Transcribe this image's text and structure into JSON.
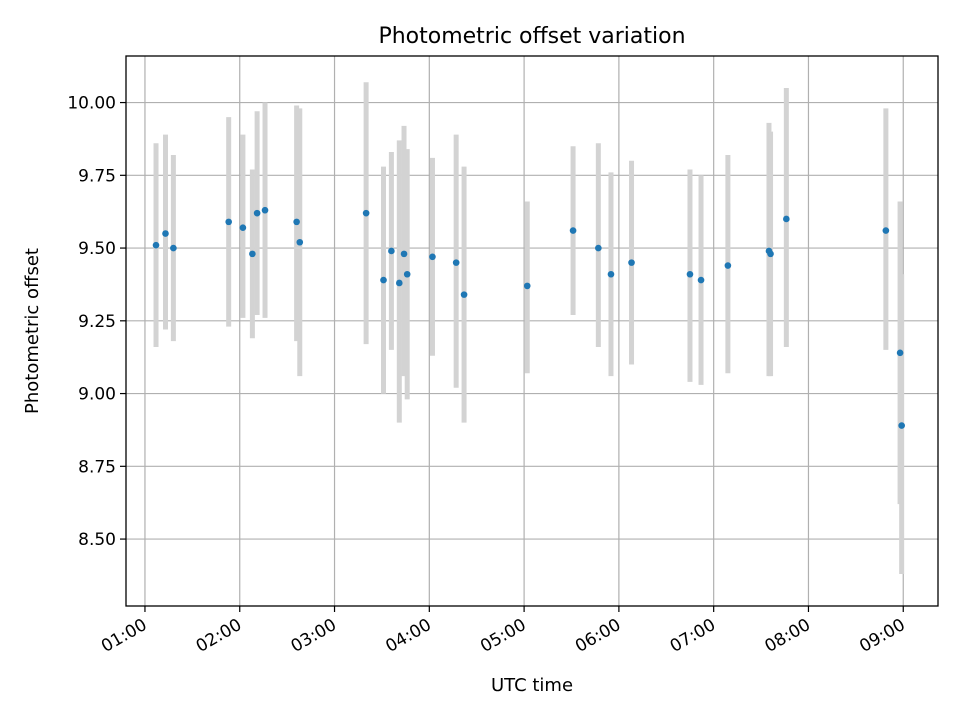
{
  "chart_data": {
    "type": "scatter",
    "title": "Photometric offset variation",
    "xlabel": "UTC time",
    "ylabel": "Photometric offset",
    "xlim": [
      "00:48",
      "09:22"
    ],
    "ylim": [
      8.27,
      10.16
    ],
    "x_ticks": [
      "01:00",
      "02:00",
      "03:00",
      "04:00",
      "05:00",
      "06:00",
      "07:00",
      "08:00",
      "09:00"
    ],
    "y_ticks": [
      8.5,
      8.75,
      9.0,
      9.25,
      9.5,
      9.75,
      10.0
    ],
    "y_tick_labels": [
      "8.50",
      "8.75",
      "9.00",
      "9.25",
      "9.50",
      "9.75",
      "10.00"
    ],
    "grid": true,
    "colors": {
      "points": "#1f77b4",
      "error_bars": "#d3d3d3"
    },
    "points": [
      {
        "t": "01:07",
        "y": 9.51,
        "lo": 9.16,
        "hi": 9.86
      },
      {
        "t": "01:13",
        "y": 9.55,
        "lo": 9.22,
        "hi": 9.89
      },
      {
        "t": "01:18",
        "y": 9.5,
        "lo": 9.18,
        "hi": 9.82
      },
      {
        "t": "01:53",
        "y": 9.59,
        "lo": 9.23,
        "hi": 9.95
      },
      {
        "t": "02:02",
        "y": 9.57,
        "lo": 9.26,
        "hi": 9.89
      },
      {
        "t": "02:08",
        "y": 9.48,
        "lo": 9.19,
        "hi": 9.77
      },
      {
        "t": "02:11",
        "y": 9.62,
        "lo": 9.27,
        "hi": 9.97
      },
      {
        "t": "02:16",
        "y": 9.63,
        "lo": 9.26,
        "hi": 10.0
      },
      {
        "t": "02:36",
        "y": 9.59,
        "lo": 9.18,
        "hi": 9.99
      },
      {
        "t": "02:38",
        "y": 9.52,
        "lo": 9.06,
        "hi": 9.98
      },
      {
        "t": "03:20",
        "y": 9.62,
        "lo": 9.17,
        "hi": 10.07
      },
      {
        "t": "03:31",
        "y": 9.39,
        "lo": 9.0,
        "hi": 9.78
      },
      {
        "t": "03:36",
        "y": 9.49,
        "lo": 9.15,
        "hi": 9.83
      },
      {
        "t": "03:41",
        "y": 9.38,
        "lo": 8.9,
        "hi": 9.87
      },
      {
        "t": "03:44",
        "y": 9.48,
        "lo": 9.06,
        "hi": 9.92
      },
      {
        "t": "03:46",
        "y": 9.41,
        "lo": 8.98,
        "hi": 9.84
      },
      {
        "t": "04:02",
        "y": 9.47,
        "lo": 9.13,
        "hi": 9.81
      },
      {
        "t": "04:17",
        "y": 9.45,
        "lo": 9.02,
        "hi": 9.89
      },
      {
        "t": "04:22",
        "y": 9.34,
        "lo": 8.9,
        "hi": 9.78
      },
      {
        "t": "05:02",
        "y": 9.37,
        "lo": 9.07,
        "hi": 9.66
      },
      {
        "t": "05:31",
        "y": 9.56,
        "lo": 9.27,
        "hi": 9.85
      },
      {
        "t": "05:47",
        "y": 9.5,
        "lo": 9.16,
        "hi": 9.86
      },
      {
        "t": "05:55",
        "y": 9.41,
        "lo": 9.06,
        "hi": 9.76
      },
      {
        "t": "06:08",
        "y": 9.45,
        "lo": 9.1,
        "hi": 9.8
      },
      {
        "t": "06:45",
        "y": 9.41,
        "lo": 9.04,
        "hi": 9.77
      },
      {
        "t": "06:52",
        "y": 9.39,
        "lo": 9.03,
        "hi": 9.75
      },
      {
        "t": "07:09",
        "y": 9.44,
        "lo": 9.07,
        "hi": 9.82
      },
      {
        "t": "07:35",
        "y": 9.49,
        "lo": 9.06,
        "hi": 9.93
      },
      {
        "t": "07:36",
        "y": 9.48,
        "lo": 9.06,
        "hi": 9.9
      },
      {
        "t": "07:46",
        "y": 9.6,
        "lo": 9.16,
        "hi": 10.05
      },
      {
        "t": "08:49",
        "y": 9.56,
        "lo": 9.15,
        "hi": 9.98
      },
      {
        "t": "08:58",
        "y": 9.14,
        "lo": 8.62,
        "hi": 9.66
      },
      {
        "t": "08:59",
        "y": 8.89,
        "lo": 8.38,
        "hi": 9.41
      }
    ]
  }
}
